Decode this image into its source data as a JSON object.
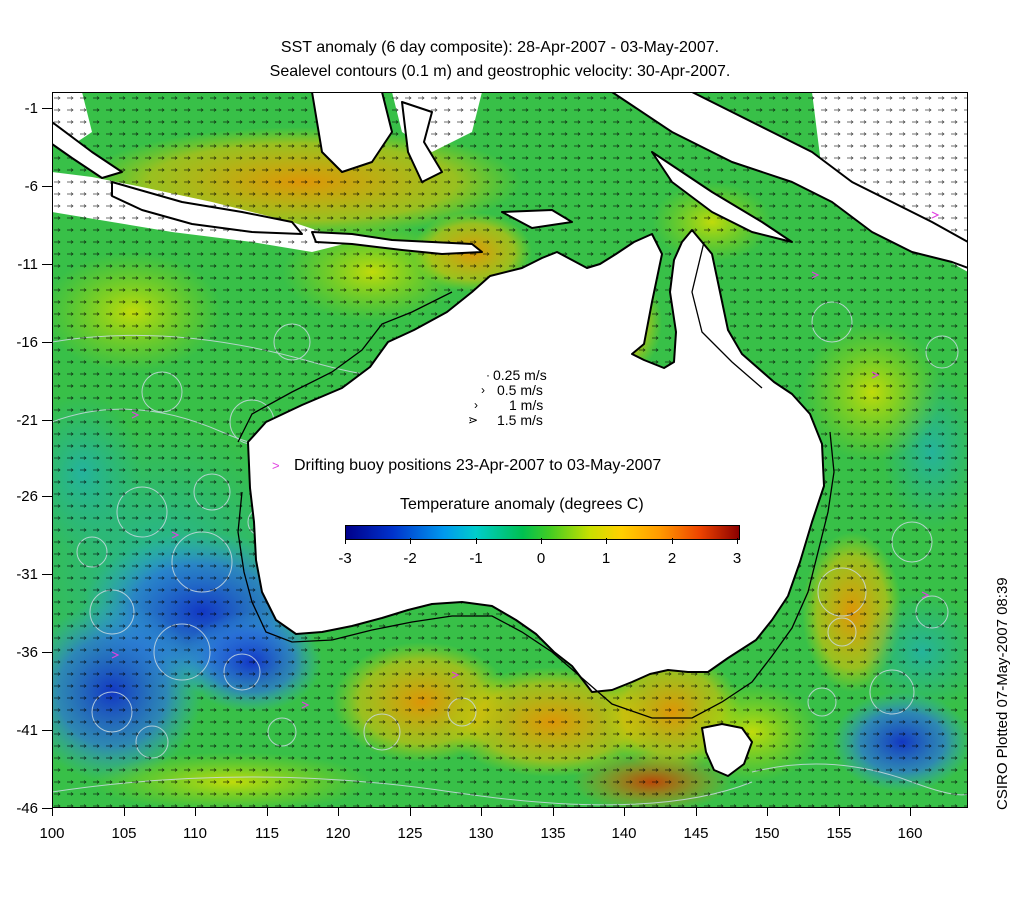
{
  "titles": {
    "line1": "SST anomaly (6 day composite): 28-Apr-2007 - 03-May-2007.",
    "line2": "Sealevel contours (0.1 m) and geostrophic velocity: 30-Apr-2007."
  },
  "axes": {
    "x_ticks": [
      "100",
      "105",
      "110",
      "115",
      "120",
      "125",
      "130",
      "135",
      "140",
      "145",
      "150",
      "155",
      "160"
    ],
    "y_ticks": [
      "-1",
      "-6",
      "-11",
      "-16",
      "-21",
      "-26",
      "-31",
      "-36",
      "-41",
      "-46"
    ],
    "x_range": [
      100,
      164
    ],
    "y_range": [
      -46,
      1
    ]
  },
  "velocity_key": [
    {
      "label": "0.25 m/s",
      "arrow": "·"
    },
    {
      "label": "0.5 m/s",
      "arrow": "›"
    },
    {
      "label": "1 m/s",
      "arrow": "›"
    },
    {
      "label": "1.5 m/s",
      "arrow": "⋗"
    }
  ],
  "buoy": {
    "text": "Drifting buoy positions 23-Apr-2007 to 03-May-2007",
    "marker": ">",
    "color": "#e040e0"
  },
  "colorbar": {
    "title": "Temperature anomaly (degrees C)",
    "ticks": [
      "-3",
      "-2",
      "-1",
      "0",
      "1",
      "2",
      "3"
    ],
    "range": [
      -3,
      3
    ]
  },
  "credit": "CSIRO Plotted 07-May-2007 08:39",
  "colors": {
    "land": "#ffffff",
    "coast": "#000000",
    "contour": "#c8d8e0",
    "cold": "#1844d0",
    "neutral": "#30c040",
    "warm": "#f0a000",
    "hot": "#d04000"
  }
}
